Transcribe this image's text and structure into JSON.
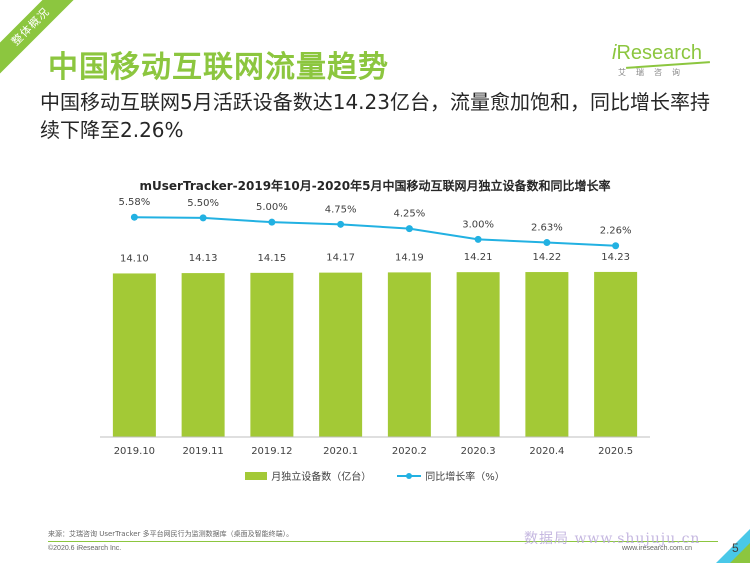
{
  "section_tag": "整体概况",
  "page_title": "中国移动互联网流量趋势",
  "subtitle": "中国移动互联网5月活跃设备数达14.23亿台，流量愈加饱和，同比增长率持续下降至2.26%",
  "logo": {
    "brand_i": "i",
    "brand_rest": "Research",
    "tagline": "艾瑞咨询"
  },
  "chart_title": "mUserTracker-2019年10月-2020年5月中国移动互联网月独立设备数和同比增长率",
  "chart_data": {
    "type": "bar+line",
    "categories": [
      "2019.10",
      "2019.11",
      "2019.12",
      "2020.1",
      "2020.2",
      "2020.3",
      "2020.4",
      "2020.5"
    ],
    "series": [
      {
        "name": "月独立设备数（亿台）",
        "type": "bar",
        "values": [
          14.1,
          14.13,
          14.15,
          14.17,
          14.19,
          14.21,
          14.22,
          14.23
        ],
        "labels": [
          "14.10",
          "14.13",
          "14.15",
          "14.17",
          "14.19",
          "14.21",
          "14.22",
          "14.23"
        ],
        "color": "#a3c936"
      },
      {
        "name": "同比增长率（%）",
        "type": "line",
        "values": [
          5.58,
          5.5,
          5.0,
          4.75,
          4.25,
          3.0,
          2.63,
          2.26
        ],
        "labels": [
          "5.58%",
          "5.50%",
          "5.00%",
          "4.75%",
          "4.25%",
          "3.00%",
          "2.63%",
          "2.26%"
        ],
        "color": "#22b1e2"
      }
    ],
    "bar_ylim": [
      0,
      20
    ],
    "line_ylim": [
      -20,
      7
    ],
    "legend_position": "bottom"
  },
  "source": "来源：艾瑞咨询 UserTracker 多平台网民行为监测数据库（桌面及智能终端）。",
  "copyright": "©2020.6 iResearch Inc.",
  "website": "www.iresearch.com.cn",
  "page_number": "5",
  "watermark": "数据局 www.shujuju.cn",
  "colors": {
    "accent": "#8cc63f",
    "bar": "#a3c936",
    "line": "#22b1e2"
  }
}
